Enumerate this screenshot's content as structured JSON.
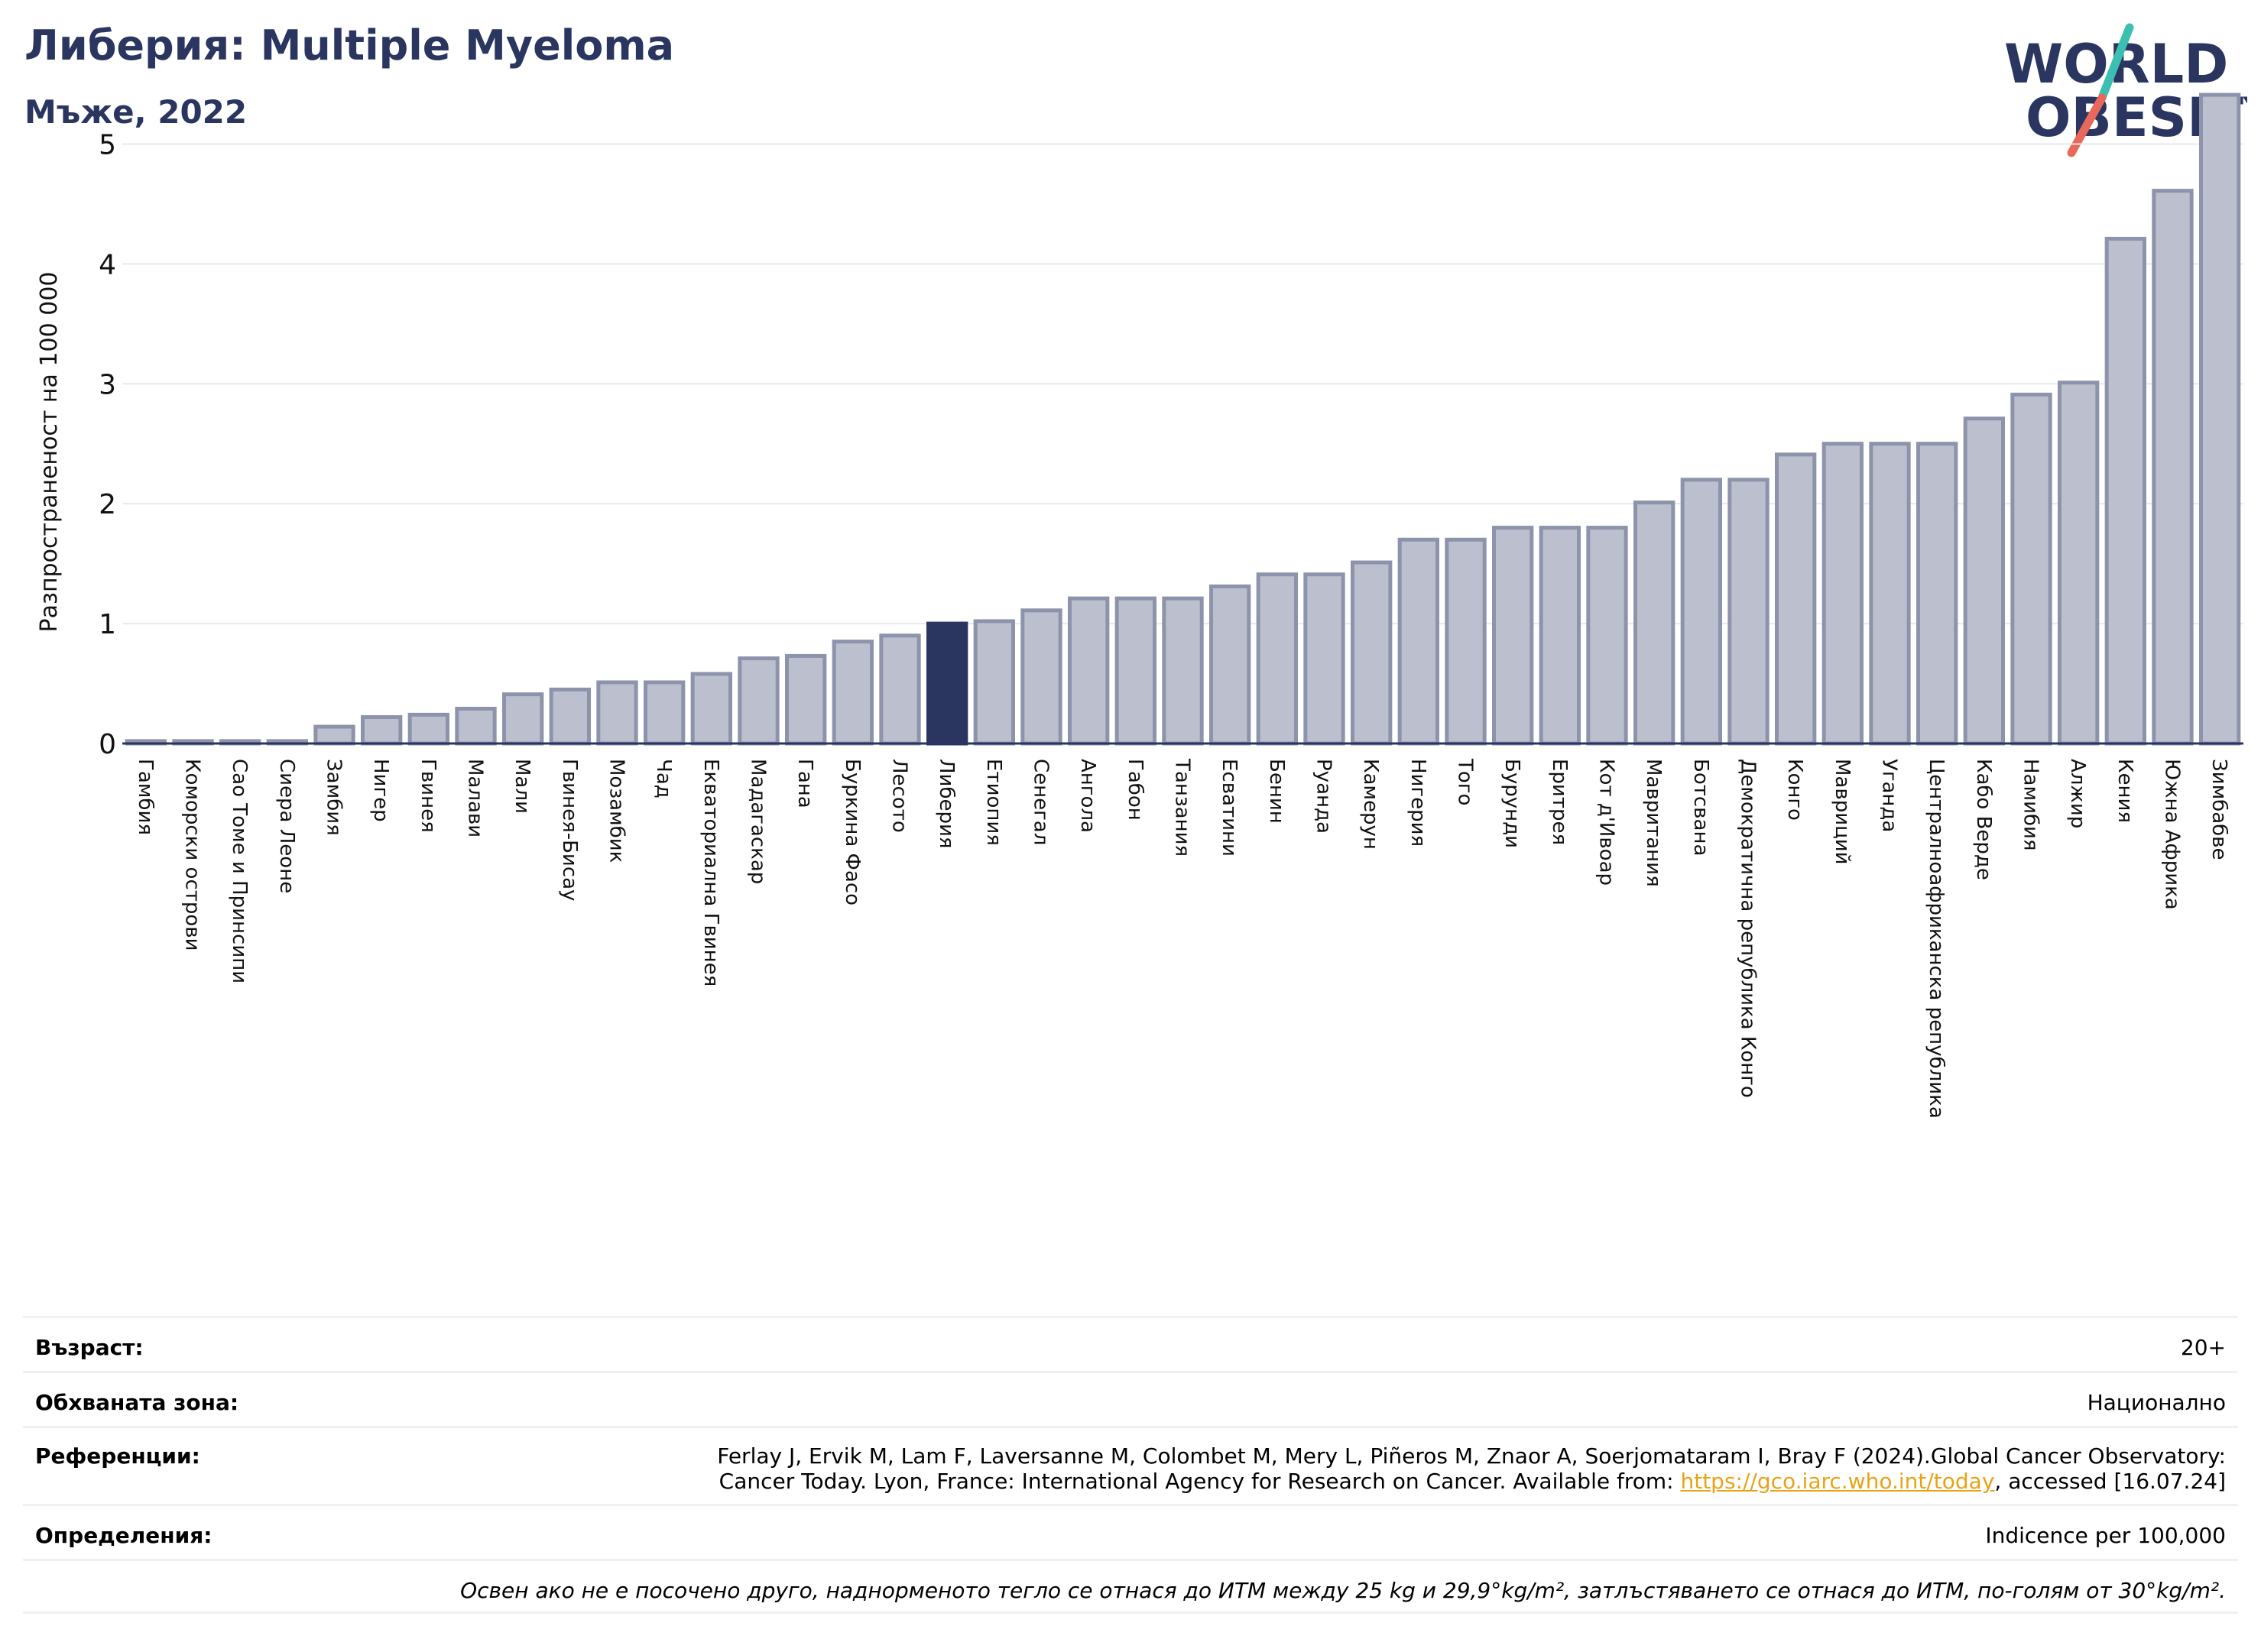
{
  "header": {
    "title": "Либерия: Multiple Myeloma",
    "subtitle": "Мъже, 2022"
  },
  "logo": {
    "line1": "WORLD",
    "line2": "OBESITY"
  },
  "colors": {
    "bar": "#bcc0ce",
    "bar_edge": "#8d93ab",
    "highlight": "#2a3560",
    "title": "#2a3560",
    "link": "#e8a317"
  },
  "chart_data": {
    "type": "bar",
    "ylabel": "Разпространеност  на 100 000",
    "ylim": [
      0,
      5.5
    ],
    "yticks": [
      0,
      1,
      2,
      3,
      4,
      5
    ],
    "grid": true,
    "highlight": "Либерия",
    "categories": [
      "Гамбия",
      "Коморски острови",
      "Сао Томе и Принсипи",
      "Сиера Леоне",
      "Замбия",
      "Нигер",
      "Гвинея",
      "Малави",
      "Мали",
      "Гвинея-Бисау",
      "Мозамбик",
      "Чад",
      "Екваториална Гвинея",
      "Мадагаскар",
      "Гана",
      "Буркина Фасо",
      "Лесото",
      "Либерия",
      "Етиопия",
      "Сенегал",
      "Ангола",
      "Габон",
      "Танзания",
      "Есватини",
      "Бенин",
      "Руанда",
      "Камерун",
      "Нигерия",
      "Того",
      "Бурунди",
      "Еритрея",
      "Кот д'Ивоар",
      "Мавритания",
      "Ботсвана",
      "Демократична република Конго",
      "Конго",
      "Мавриций",
      "Уганда",
      "Централноафриканска република",
      "Кабо Верде",
      "Намибия",
      "Алжир",
      "Кения",
      "Южна Африка",
      "Зимбабве"
    ],
    "values": [
      0.02,
      0.02,
      0.02,
      0.02,
      0.14,
      0.22,
      0.24,
      0.29,
      0.41,
      0.45,
      0.51,
      0.51,
      0.58,
      0.71,
      0.73,
      0.85,
      0.9,
      1.0,
      1.02,
      1.11,
      1.21,
      1.21,
      1.21,
      1.31,
      1.41,
      1.41,
      1.51,
      1.7,
      1.7,
      1.8,
      1.8,
      1.8,
      2.01,
      2.2,
      2.2,
      2.41,
      2.5,
      2.5,
      2.5,
      2.71,
      2.91,
      3.01,
      4.21,
      4.61,
      5.41
    ]
  },
  "meta": {
    "age_label": "Възраст:",
    "age_value": "20+",
    "area_label": "Обхваната зона:",
    "area_value": "Национално",
    "ref_label": "Референции:",
    "ref_line1": "Ferlay J, Ervik M, Lam F, Laversanne M, Colombet M, Mery L, Piñeros M, Znaor A, Soerjomataram I, Bray F (2024).Global Cancer Observatory:",
    "ref_line2_a": "Cancer Today. Lyon, France: International Agency for Research on Cancer. Available from: ",
    "ref_link": "https://gco.iarc.who.int/today",
    "ref_line2_b": ", accessed [16.07.24]",
    "def_label": "Определения:",
    "def_value": "Indicence per 100,000",
    "note": "Освен ако не е посочено друго, наднорменото тегло се отнася до ИТМ между 25 kg и 29,9°kg/m², затлъстяването се отнася до ИТМ, по-голям от 30°kg/m²."
  }
}
